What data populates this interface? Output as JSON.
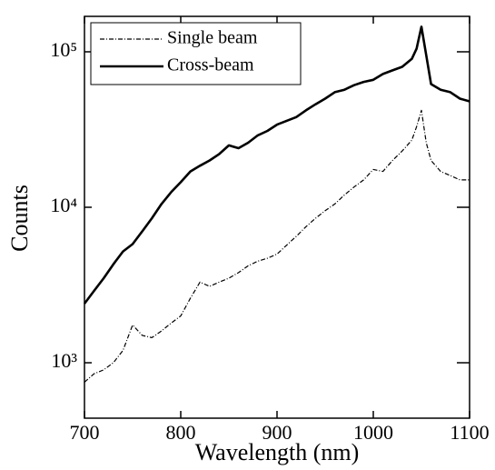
{
  "chart_data": {
    "type": "line",
    "log_y": true,
    "legend": "upper left",
    "xlabel": "Wavelength (nm)",
    "ylabel": "Counts",
    "x": [
      700,
      710,
      720,
      730,
      740,
      750,
      760,
      770,
      780,
      790,
      800,
      810,
      820,
      830,
      840,
      850,
      860,
      870,
      880,
      890,
      900,
      910,
      920,
      930,
      940,
      950,
      960,
      970,
      980,
      990,
      1000,
      1010,
      1020,
      1030,
      1040,
      1045,
      1050,
      1055,
      1060,
      1070,
      1080,
      1090,
      1100
    ],
    "series": [
      {
        "name": "Single beam",
        "color": "#000000",
        "linestyle": "dash-dot",
        "values": [
          750,
          850,
          900,
          1000,
          1200,
          1750,
          1500,
          1450,
          1600,
          1800,
          2000,
          2600,
          3300,
          3100,
          3300,
          3500,
          3800,
          4200,
          4500,
          4700,
          5000,
          5700,
          6500,
          7500,
          8500,
          9500,
          10500,
          12000,
          13500,
          15000,
          17500,
          17000,
          20000,
          23000,
          27000,
          33000,
          42000,
          26000,
          20000,
          17000,
          16000,
          15000,
          15000
        ]
      },
      {
        "name": "Cross-beam",
        "color": "#000000",
        "linestyle": "solid",
        "values": [
          2400,
          2900,
          3500,
          4300,
          5200,
          5800,
          7000,
          8500,
          10500,
          12500,
          14500,
          17000,
          18500,
          20000,
          22000,
          25000,
          24000,
          26000,
          29000,
          31000,
          34000,
          36000,
          38000,
          42000,
          46000,
          50000,
          55000,
          57000,
          61000,
          64000,
          66000,
          72000,
          76000,
          80000,
          90000,
          105000,
          145000,
          95000,
          62000,
          57000,
          55000,
          50000,
          48000
        ]
      }
    ],
    "xlim": [
      700,
      1100
    ],
    "xticks": [
      700,
      800,
      900,
      1000,
      1100
    ],
    "ylim": [
      440,
      169000
    ],
    "yticks": [
      {
        "value": 1000,
        "label": "10³"
      },
      {
        "value": 10000,
        "label": "10⁴"
      },
      {
        "value": 100000,
        "label": "10⁵"
      }
    ]
  }
}
